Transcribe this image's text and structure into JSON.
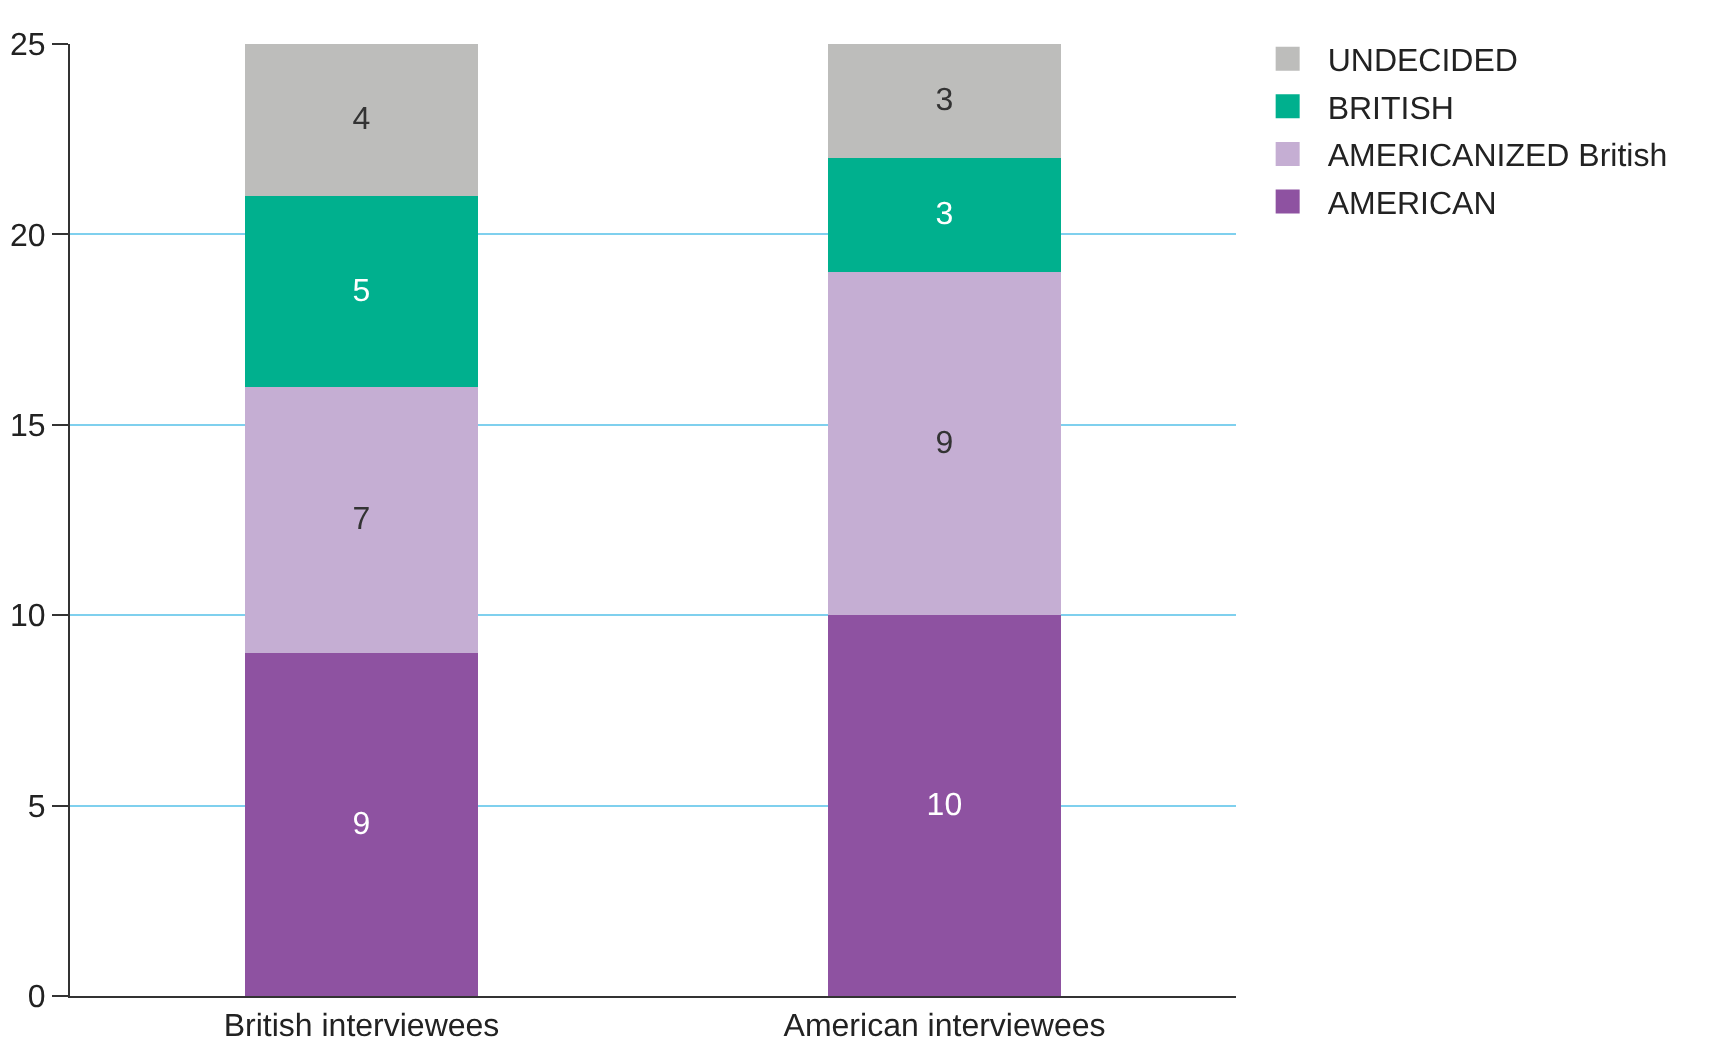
{
  "chart_data": {
    "type": "bar",
    "stacked": true,
    "categories": [
      "British interviewees",
      "American interviewees"
    ],
    "series": [
      {
        "name": "AMERICAN",
        "color": "#8e52a1",
        "values": [
          9,
          10
        ]
      },
      {
        "name": "AMERICANIZED British",
        "color": "#c5aed3",
        "values": [
          7,
          9
        ]
      },
      {
        "name": "BRITISH",
        "color": "#00b08e",
        "values": [
          5,
          3
        ]
      },
      {
        "name": "UNDECIDED",
        "color": "#bdbdbb",
        "values": [
          4,
          3
        ]
      }
    ],
    "ylim": [
      0,
      25
    ],
    "yticks": [
      0,
      5,
      10,
      15,
      20,
      25
    ],
    "grid": "y",
    "legend": "top right",
    "data_labels": true
  }
}
